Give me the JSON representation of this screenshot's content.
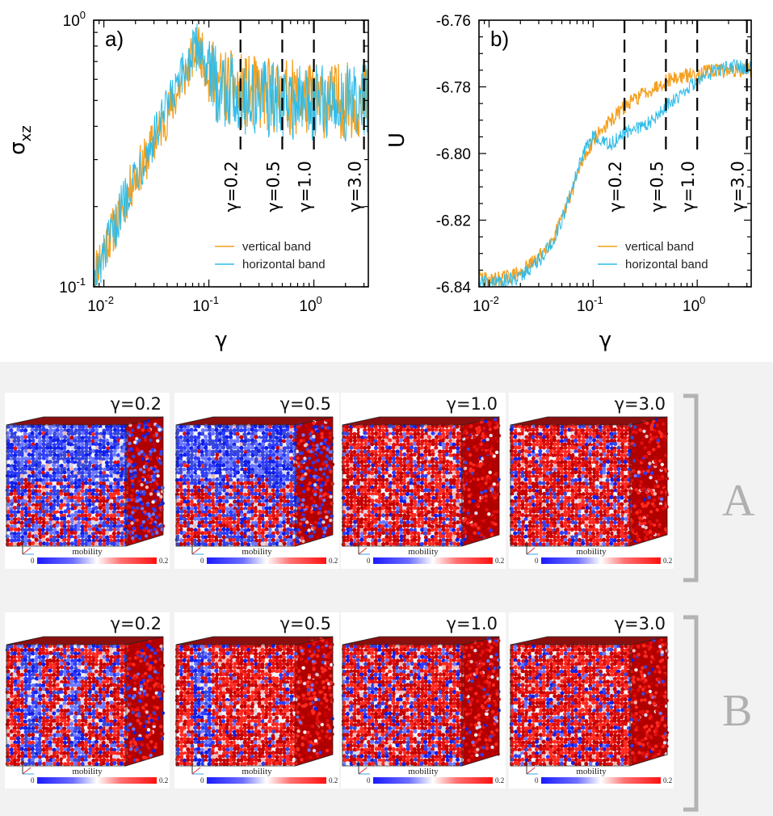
{
  "chart_data": [
    {
      "id": "a",
      "type": "line",
      "panel_label": "a)",
      "xlabel": "γ",
      "ylabel": "σ",
      "ylabel_sub": "xz",
      "xscale": "log",
      "yscale": "log",
      "xlim": [
        0.008,
        3.3
      ],
      "ylim": [
        0.1,
        1.0
      ],
      "x_ticks": [
        {
          "value": 0.01,
          "base": "10",
          "exp": "-2"
        },
        {
          "value": 0.1,
          "base": "10",
          "exp": "-1"
        },
        {
          "value": 1,
          "base": "10",
          "exp": "0"
        }
      ],
      "y_ticks": [
        {
          "value": 0.1,
          "base": "10",
          "exp": "-1"
        },
        {
          "value": 1.0,
          "base": "10",
          "exp": "0"
        }
      ],
      "vlines": [
        {
          "x": 0.2,
          "label": "γ=0.2"
        },
        {
          "x": 0.5,
          "label": "γ=0.5"
        },
        {
          "x": 1.0,
          "label": "γ=1.0"
        },
        {
          "x": 3.0,
          "label": "γ=3.0"
        }
      ],
      "legend_position": "bottom-right",
      "series": [
        {
          "name": "vertical band",
          "color": "#f5a020",
          "x": [
            0.008,
            0.01,
            0.013,
            0.016,
            0.02,
            0.025,
            0.03,
            0.04,
            0.05,
            0.06,
            0.07,
            0.08,
            0.09,
            0.1,
            0.12,
            0.15,
            0.2,
            0.25,
            0.3,
            0.4,
            0.5,
            0.7,
            1.0,
            1.5,
            2.0,
            3.0
          ],
          "y": [
            0.11,
            0.14,
            0.17,
            0.21,
            0.26,
            0.3,
            0.35,
            0.44,
            0.53,
            0.63,
            0.73,
            0.8,
            0.7,
            0.63,
            0.58,
            0.56,
            0.54,
            0.53,
            0.53,
            0.52,
            0.52,
            0.51,
            0.5,
            0.5,
            0.5,
            0.5
          ]
        },
        {
          "name": "horizontal band",
          "color": "#30bce8",
          "x": [
            0.008,
            0.01,
            0.013,
            0.016,
            0.02,
            0.025,
            0.03,
            0.04,
            0.05,
            0.06,
            0.07,
            0.08,
            0.09,
            0.1,
            0.12,
            0.15,
            0.2,
            0.25,
            0.3,
            0.4,
            0.5,
            0.7,
            1.0,
            1.5,
            2.0,
            3.0
          ],
          "y": [
            0.1,
            0.13,
            0.17,
            0.22,
            0.27,
            0.31,
            0.36,
            0.46,
            0.55,
            0.65,
            0.75,
            0.81,
            0.71,
            0.62,
            0.57,
            0.55,
            0.52,
            0.51,
            0.51,
            0.5,
            0.5,
            0.49,
            0.49,
            0.49,
            0.49,
            0.49
          ]
        }
      ]
    },
    {
      "id": "b",
      "type": "line",
      "panel_label": "b)",
      "xlabel": "γ",
      "ylabel": "U",
      "xscale": "log",
      "yscale": "linear",
      "xlim": [
        0.008,
        3.3
      ],
      "ylim": [
        -6.84,
        -6.76
      ],
      "x_ticks": [
        {
          "value": 0.01,
          "base": "10",
          "exp": "-2"
        },
        {
          "value": 0.1,
          "base": "10",
          "exp": "-1"
        },
        {
          "value": 1,
          "base": "10",
          "exp": "0"
        }
      ],
      "y_ticks": [
        {
          "value": -6.84,
          "label": "-6.84"
        },
        {
          "value": -6.82,
          "label": "-6.82"
        },
        {
          "value": -6.8,
          "label": "-6.80"
        },
        {
          "value": -6.78,
          "label": "-6.78"
        },
        {
          "value": -6.76,
          "label": "-6.76"
        }
      ],
      "vlines": [
        {
          "x": 0.2,
          "label": "γ=0.2"
        },
        {
          "x": 0.5,
          "label": "γ=0.5"
        },
        {
          "x": 1.0,
          "label": "γ=1.0"
        },
        {
          "x": 3.0,
          "label": "γ=3.0"
        }
      ],
      "legend_position": "bottom-right",
      "series": [
        {
          "name": "vertical band",
          "color": "#f5a020",
          "x": [
            0.008,
            0.01,
            0.015,
            0.02,
            0.03,
            0.04,
            0.05,
            0.06,
            0.07,
            0.08,
            0.1,
            0.12,
            0.15,
            0.2,
            0.3,
            0.4,
            0.5,
            0.7,
            1.0,
            1.5,
            2.0,
            3.0
          ],
          "y": [
            -6.837,
            -6.838,
            -6.837,
            -6.836,
            -6.831,
            -6.826,
            -6.82,
            -6.813,
            -6.807,
            -6.802,
            -6.796,
            -6.793,
            -6.79,
            -6.786,
            -6.782,
            -6.78,
            -6.778,
            -6.777,
            -6.776,
            -6.775,
            -6.775,
            -6.775
          ]
        },
        {
          "name": "horizontal band",
          "color": "#30bce8",
          "x": [
            0.008,
            0.01,
            0.015,
            0.02,
            0.03,
            0.04,
            0.05,
            0.06,
            0.07,
            0.08,
            0.1,
            0.12,
            0.15,
            0.2,
            0.3,
            0.4,
            0.5,
            0.7,
            1.0,
            1.5,
            2.0,
            3.0
          ],
          "y": [
            -6.838,
            -6.839,
            -6.838,
            -6.837,
            -6.832,
            -6.827,
            -6.82,
            -6.812,
            -6.806,
            -6.8,
            -6.795,
            -6.797,
            -6.797,
            -6.794,
            -6.792,
            -6.789,
            -6.786,
            -6.782,
            -6.778,
            -6.775,
            -6.774,
            -6.774
          ]
        }
      ]
    }
  ],
  "snapshots": {
    "mobility_label": "mobility",
    "mobility_min": "0",
    "mobility_max": "0.2",
    "rows": [
      {
        "group_label": "A",
        "items": [
          {
            "label": "γ=0.2",
            "red_fraction": 0.25
          },
          {
            "label": "γ=0.5",
            "red_fraction": 0.35
          },
          {
            "label": "γ=1.0",
            "red_fraction": 0.8
          },
          {
            "label": "γ=3.0",
            "red_fraction": 0.82
          }
        ]
      },
      {
        "group_label": "B",
        "items": [
          {
            "label": "γ=0.2",
            "red_fraction": 0.62
          },
          {
            "label": "γ=0.5",
            "red_fraction": 0.78
          },
          {
            "label": "γ=1.0",
            "red_fraction": 0.74
          },
          {
            "label": "γ=3.0",
            "red_fraction": 0.82
          }
        ]
      }
    ]
  }
}
